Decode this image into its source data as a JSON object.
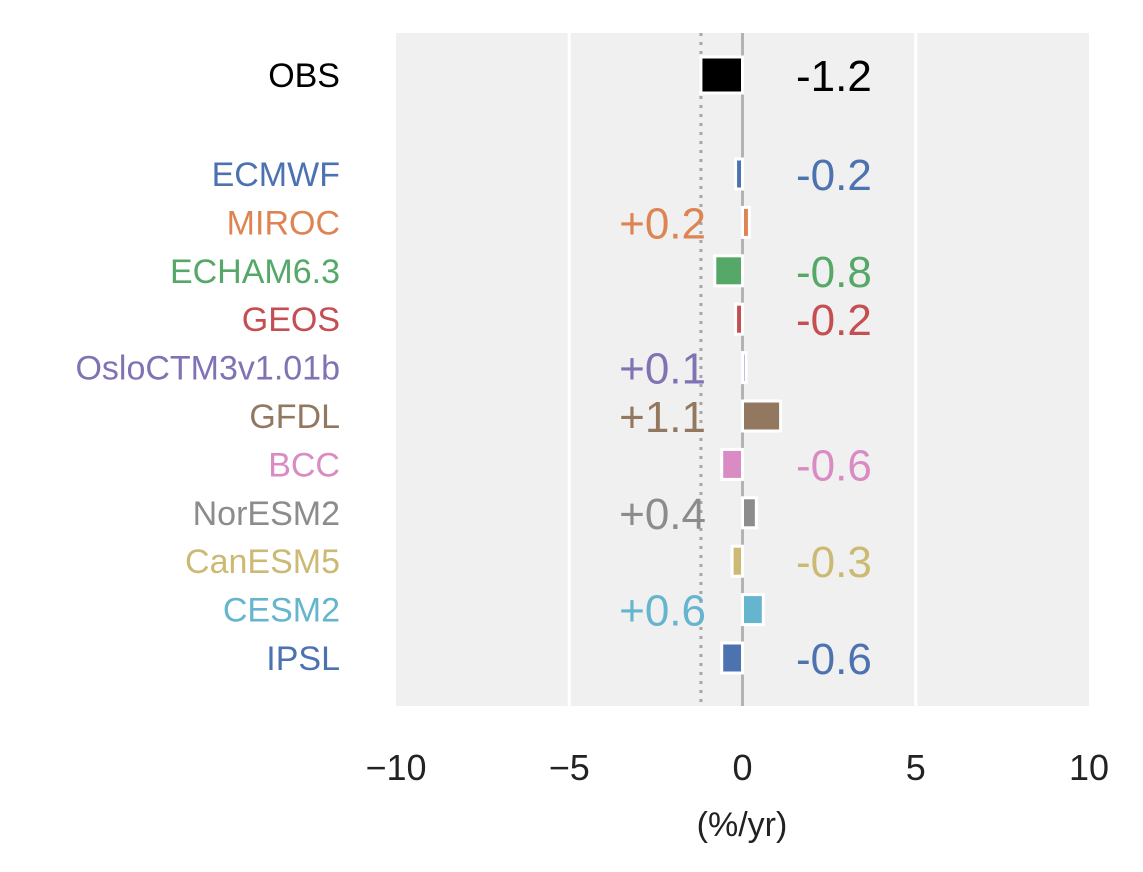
{
  "chart_data": {
    "type": "bar",
    "orientation": "horizontal",
    "xlabel": "(%/yr)",
    "xlim": [
      -10,
      10
    ],
    "xticks": [
      -10,
      -5,
      0,
      5,
      10
    ],
    "xtick_labels": [
      "−10",
      "−5",
      "0",
      "5",
      "10"
    ],
    "reference_line": -1.2,
    "grid": true,
    "categories": [
      "OBS",
      "ECMWF",
      "MIROC",
      "ECHAM6.3",
      "GEOS",
      "OsloCTM3v1.01b",
      "GFDL",
      "BCC",
      "NorESM2",
      "CanESM5",
      "CESM2",
      "IPSL"
    ],
    "values": [
      -1.2,
      -0.2,
      0.2,
      -0.8,
      -0.2,
      0.1,
      1.1,
      -0.6,
      0.4,
      -0.3,
      0.6,
      -0.6
    ],
    "value_labels": [
      "-1.2",
      "-0.2",
      "+0.2",
      "-0.8",
      "-0.2",
      "+0.1",
      "+1.1",
      "-0.6",
      "+0.4",
      "-0.3",
      "+0.6",
      "-0.6"
    ],
    "colors": [
      "#000000",
      "#4c72b0",
      "#dd8452",
      "#55a868",
      "#c44e52",
      "#8172b3",
      "#937860",
      "#da8bc3",
      "#8c8c8c",
      "#ccb974",
      "#64b5cd",
      "#4c72b0"
    ]
  }
}
